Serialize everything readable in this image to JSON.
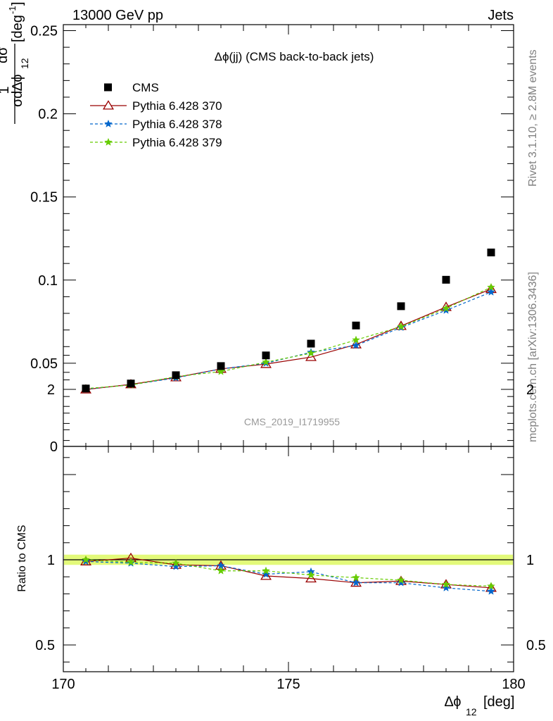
{
  "header": {
    "left": "13000 GeV pp",
    "right": "Jets"
  },
  "side_text": {
    "rivet": "Rivet 3.1.10, ≥ 2.8M events",
    "mcplots": "mcplots.cern.ch [arXiv:1306.3436]"
  },
  "colors": {
    "data": "#000000",
    "p370": "#990000",
    "p378": "#0066cc",
    "p379": "#66cc00",
    "band": "#e3fa7a"
  },
  "chart_data": [
    {
      "type": "scatter",
      "title": "Δϕ(jj) (CMS back-to-back jets)",
      "watermark": "CMS_2019_I1719955",
      "ylabel": "1/σ dσ/dΔϕ_12 [deg^-1]",
      "xlim": [
        170,
        180
      ],
      "ylim": [
        0,
        0.255
      ],
      "yticks": [
        0,
        0.05,
        0.1,
        0.15,
        0.2,
        0.25
      ],
      "ytick_labels": [
        "0",
        "0.05",
        "0.1",
        "0.15",
        "0.2",
        "0.25"
      ],
      "legend_position": "top-left",
      "x": [
        170.5,
        171.5,
        172.5,
        173.5,
        174.5,
        175.5,
        176.5,
        177.5,
        178.5,
        179.5
      ],
      "series": [
        {
          "name": "CMS",
          "marker": "square",
          "values": [
            0.0348,
            0.0378,
            0.0428,
            0.0483,
            0.0547,
            0.0618,
            0.0727,
            0.0843,
            0.1002,
            0.1166
          ]
        },
        {
          "name": "Pythia 6.428 370",
          "marker": "triangle",
          "values": [
            0.0342,
            0.0373,
            0.0415,
            0.0466,
            0.0495,
            0.0537,
            0.0613,
            0.0724,
            0.0838,
            0.0946
          ]
        },
        {
          "name": "Pythia 6.428 378",
          "marker": "star",
          "values": [
            0.0345,
            0.037,
            0.0412,
            0.0466,
            0.05,
            0.0566,
            0.0607,
            0.0715,
            0.0818,
            0.0928
          ]
        },
        {
          "name": "Pythia 6.428 379",
          "marker": "star",
          "values": [
            0.0348,
            0.0369,
            0.042,
            0.045,
            0.0507,
            0.056,
            0.064,
            0.072,
            0.083,
            0.0957
          ]
        }
      ]
    },
    {
      "type": "line",
      "ylabel": "Ratio to CMS",
      "xlabel": "Δϕ_12 [deg]",
      "xlim": [
        170,
        180
      ],
      "ylim": [
        0.34,
        2.25
      ],
      "xticks": [
        170,
        175,
        180
      ],
      "xtick_labels": [
        "170",
        "175",
        "180"
      ],
      "yticks": [
        0.5,
        1,
        2
      ],
      "ytick_labels": [
        "0.5",
        "1",
        "2"
      ],
      "x": [
        170.5,
        171.5,
        172.5,
        173.5,
        174.5,
        175.5,
        176.5,
        177.5,
        178.5,
        179.5
      ],
      "band": [
        0.97,
        1.03
      ],
      "series": [
        {
          "name": "Pythia 6.428 370",
          "values": [
            0.99,
            1.01,
            0.97,
            0.965,
            0.905,
            0.89,
            0.865,
            0.875,
            0.855,
            0.835
          ]
        },
        {
          "name": "Pythia 6.428 378",
          "values": [
            0.99,
            0.98,
            0.96,
            0.965,
            0.915,
            0.93,
            0.865,
            0.865,
            0.835,
            0.815
          ]
        },
        {
          "name": "Pythia 6.428 379",
          "values": [
            1.0,
            0.985,
            0.98,
            0.935,
            0.935,
            0.91,
            0.895,
            0.88,
            0.855,
            0.845
          ]
        }
      ]
    }
  ]
}
